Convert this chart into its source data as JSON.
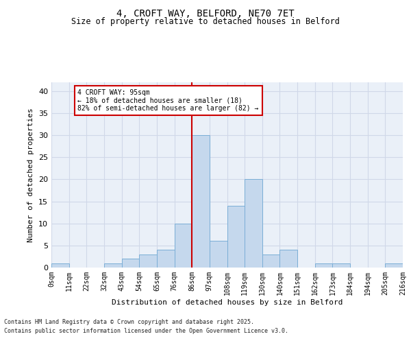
{
  "title1": "4, CROFT WAY, BELFORD, NE70 7ET",
  "title2": "Size of property relative to detached houses in Belford",
  "xlabel": "Distribution of detached houses by size in Belford",
  "ylabel": "Number of detached properties",
  "bin_labels": [
    "0sqm",
    "11sqm",
    "22sqm",
    "32sqm",
    "43sqm",
    "54sqm",
    "65sqm",
    "76sqm",
    "86sqm",
    "97sqm",
    "108sqm",
    "119sqm",
    "130sqm",
    "140sqm",
    "151sqm",
    "162sqm",
    "173sqm",
    "184sqm",
    "194sqm",
    "205sqm",
    "216sqm"
  ],
  "bar_heights": [
    1,
    0,
    0,
    1,
    2,
    3,
    4,
    10,
    30,
    6,
    14,
    20,
    3,
    4,
    0,
    1,
    1,
    0,
    0,
    1
  ],
  "bar_color": "#c5d8ed",
  "bar_edge_color": "#7aaed6",
  "grid_color": "#d0d8e8",
  "bg_color": "#eaf0f8",
  "vline_x": 8.0,
  "vline_color": "#cc0000",
  "annotation_title": "4 CROFT WAY: 95sqm",
  "annotation_line1": "← 18% of detached houses are smaller (18)",
  "annotation_line2": "82% of semi-detached houses are larger (82) →",
  "annotation_box_color": "#cc0000",
  "annotation_bg": "white",
  "ylim": [
    0,
    42
  ],
  "yticks": [
    0,
    5,
    10,
    15,
    20,
    25,
    30,
    35,
    40
  ],
  "footnote1": "Contains HM Land Registry data © Crown copyright and database right 2025.",
  "footnote2": "Contains public sector information licensed under the Open Government Licence v3.0."
}
